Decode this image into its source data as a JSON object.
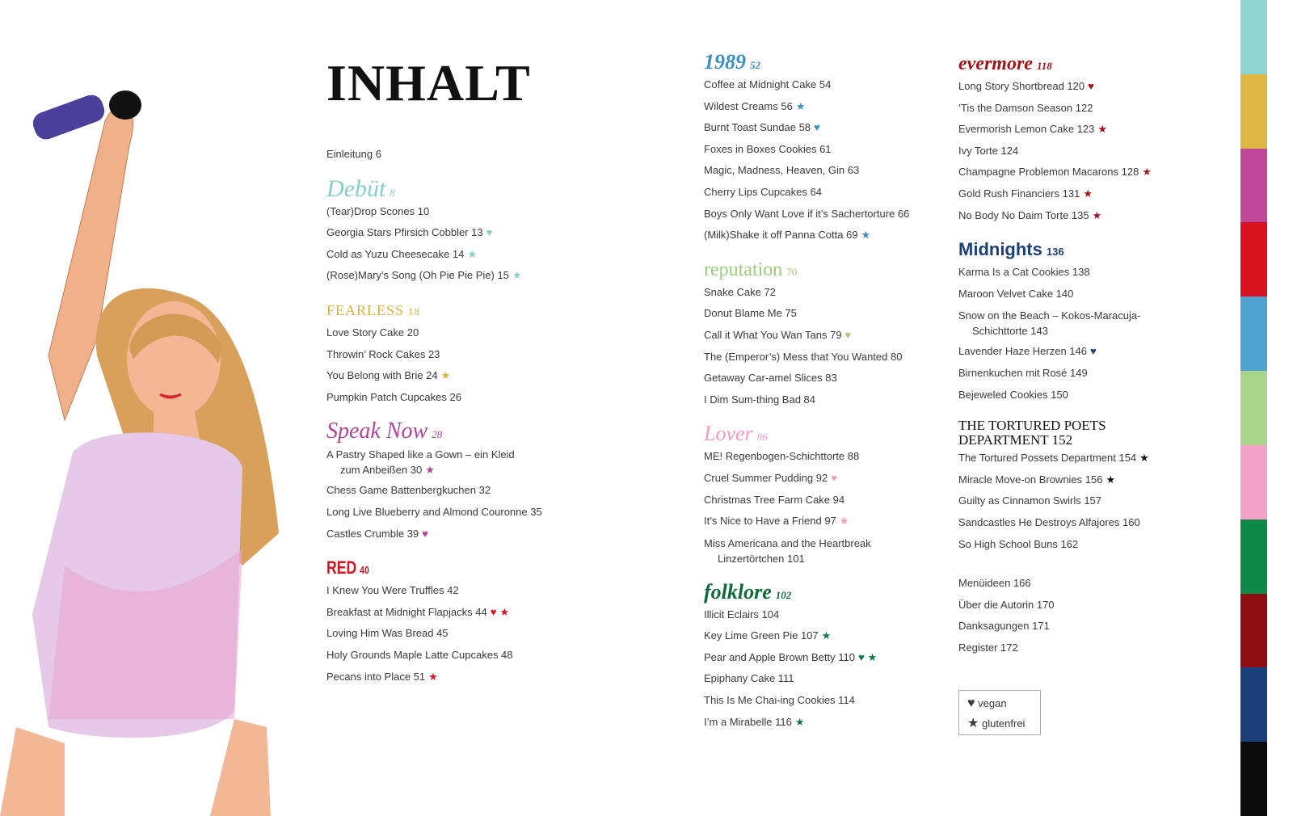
{
  "title": "INHALT",
  "columns": [
    {
      "sections": [
        {
          "kind": "plain",
          "items": [
            {
              "t": "Einleitung 6"
            }
          ]
        },
        {
          "kind": "debut",
          "title": "Debüt",
          "page": "8",
          "color": "#86cfcb",
          "items": [
            {
              "t": "(Tear)Drop Scones 10"
            },
            {
              "t": "Georgia Stars Pfirsich Cobbler 13",
              "icons": [
                "heart"
              ]
            },
            {
              "t": "Cold as Yuzu Cheesecake 14",
              "icons": [
                "star"
              ]
            },
            {
              "t": "(Rose)Mary’s Song (Oh Pie Pie Pie) 15",
              "icons": [
                "star"
              ]
            }
          ]
        },
        {
          "kind": "fearless",
          "title": "FEARLESS",
          "page": "18",
          "color": "#dbb246",
          "items": [
            {
              "t": "Love Story Cake 20"
            },
            {
              "t": "Throwin’ Rock Cakes 23"
            },
            {
              "t": "You Belong with Brie 24",
              "icons": [
                "star"
              ]
            },
            {
              "t": "Pumpkin Patch Cupcakes 26"
            }
          ]
        },
        {
          "kind": "speak",
          "title": "Speak Now",
          "page": "28",
          "color": "#b0469c",
          "items": [
            {
              "t": "A Pastry Shaped like a Gown – ein Kleid",
              "t2": "zum Anbeißen 30",
              "icons": [
                "star"
              ]
            },
            {
              "t": "Chess Game Battenbergkuchen 32"
            },
            {
              "t": "Long Live Blueberry and Almond Couronne 35"
            },
            {
              "t": "Castles Crumble 39",
              "icons": [
                "heart"
              ]
            }
          ]
        },
        {
          "kind": "red",
          "title": "RED",
          "page": "40",
          "color": "#d2141f",
          "items": [
            {
              "t": "I Knew You Were Truffles 42"
            },
            {
              "t": "Breakfast at Midnight Flapjacks 44",
              "icons": [
                "heart",
                "star"
              ]
            },
            {
              "t": "Loving Him Was Bread 45"
            },
            {
              "t": "Holy Grounds Maple Latte Cupcakes 48"
            },
            {
              "t": "Pecans into Place 51",
              "icons": [
                "star"
              ]
            }
          ]
        }
      ]
    },
    {
      "sections": [
        {
          "kind": "1989",
          "title": "1989",
          "page": "52",
          "color": "#3c8fc1",
          "items": [
            {
              "t": "Coffee at Midnight Cake 54"
            },
            {
              "t": "Wildest Creams 56",
              "icons": [
                "star"
              ]
            },
            {
              "t": "Burnt Toast Sundae 58",
              "icons": [
                "heart"
              ]
            },
            {
              "t": "Foxes in Boxes Cookies 61"
            },
            {
              "t": "Magic, Madness, Heaven, Gin 63"
            },
            {
              "t": "Cherry Lips Cupcakes 64"
            },
            {
              "t": "Boys Only Want Love if it’s Sachertorture 66"
            },
            {
              "t": "(Milk)Shake it off Panna Cotta 69",
              "icons": [
                "star"
              ]
            }
          ]
        },
        {
          "kind": "rep",
          "title": "reputation",
          "page": "70",
          "color": "#9ccb7c",
          "items": [
            {
              "t": "Snake Cake 72"
            },
            {
              "t": "Donut Blame Me 75"
            },
            {
              "t": "Call it What You Wan Tans 79",
              "icons": [
                "heart"
              ]
            },
            {
              "t": "The (Emperor’s) Mess that You Wanted 80"
            },
            {
              "t": "Getaway Car-amel Slices 83"
            },
            {
              "t": "I Dim Sum-thing Bad 84"
            }
          ]
        },
        {
          "kind": "lover",
          "title": "Lover",
          "page": "86",
          "color": "#f29ac4",
          "items": [
            {
              "t": "ME! Regenbogen-Schichttorte 88"
            },
            {
              "t": "Cruel Summer Pudding 92",
              "icons": [
                "heart"
              ]
            },
            {
              "t": "Christmas Tree Farm Cake 94"
            },
            {
              "t": "It’s Nice to Have a Friend 97",
              "icons": [
                "star"
              ]
            },
            {
              "t": "Miss Americana and the Heartbreak",
              "t2": "Linzertörtchen 101"
            }
          ]
        },
        {
          "kind": "folk",
          "title": "folklore",
          "page": "102",
          "color": "#0d7a42",
          "items": [
            {
              "t": "Illicit Eclairs 104"
            },
            {
              "t": "Key Lime Green Pie 107",
              "icons": [
                "star"
              ]
            },
            {
              "t": "Pear and Apple Brown Betty 110",
              "icons": [
                "heart",
                "star"
              ]
            },
            {
              "t": "Epiphany Cake 111"
            },
            {
              "t": "This Is Me Chai-ing Cookies 114"
            },
            {
              "t": "I’m a Mirabelle 116",
              "icons": [
                "star"
              ]
            }
          ]
        }
      ]
    },
    {
      "sections": [
        {
          "kind": "ever",
          "title": "evermore",
          "page": "118",
          "color": "#a3151b",
          "items": [
            {
              "t": "Long Story Shortbread 120",
              "icons": [
                "heart"
              ]
            },
            {
              "t": "’Tis the Damson Season 122"
            },
            {
              "t": "Evermorish Lemon Cake 123",
              "icons": [
                "star"
              ]
            },
            {
              "t": "Ivy Torte 124"
            },
            {
              "t": "Champagne Problemon Macarons 128",
              "icons": [
                "star"
              ]
            },
            {
              "t": "Gold Rush Financiers 131",
              "icons": [
                "star"
              ]
            },
            {
              "t": "No Body No Daim Torte 135",
              "icons": [
                "star"
              ]
            }
          ]
        },
        {
          "kind": "mid",
          "title": "Midnights",
          "page": "136",
          "color": "#1c3f78",
          "items": [
            {
              "t": "Karma Is a Cat Cookies 138"
            },
            {
              "t": "Maroon Velvet Cake 140"
            },
            {
              "t": "Snow on the Beach – Kokos-Maracuja-",
              "t2": "Schichttorte 143"
            },
            {
              "t": "Lavender Haze Herzen 146",
              "icons": [
                "heart"
              ]
            },
            {
              "t": "Birnenkuchen mit Rosé 149"
            },
            {
              "t": "Bejeweled Cookies 150"
            }
          ]
        },
        {
          "kind": "ttpd",
          "title": "THE TORTURED POETS DEPARTMENT 152",
          "page": "",
          "color": "#111111",
          "items": [
            {
              "t": "The Tortured Possets Department 154",
              "icons": [
                "star"
              ]
            },
            {
              "t": "Miracle Move-on Brownies 156",
              "icons": [
                "star"
              ]
            },
            {
              "t": "Guilty as Cinnamon Swirls 157"
            },
            {
              "t": "Sandcastles He Destroys Alfajores 160"
            },
            {
              "t": "So High School Buns 162"
            }
          ]
        },
        {
          "kind": "plain",
          "items": [
            {
              "t": "Menüideen 166"
            },
            {
              "t": "Über die Autorin 170"
            },
            {
              "t": "Danksagungen 171"
            },
            {
              "t": "Register 172"
            }
          ]
        }
      ]
    }
  ],
  "legend": {
    "vegan": "vegan",
    "glutenfrei": "glutenfrei",
    "icon_color": "#3a3a3a"
  },
  "strip_colors": [
    "#8fd3cf",
    "#e0b845",
    "#c0489a",
    "#d8131f",
    "#4ea3d3",
    "#a8d48a",
    "#f2a0c8",
    "#0f8a46",
    "#8c0f14",
    "#1a3f7a",
    "#0a0a0a"
  ]
}
